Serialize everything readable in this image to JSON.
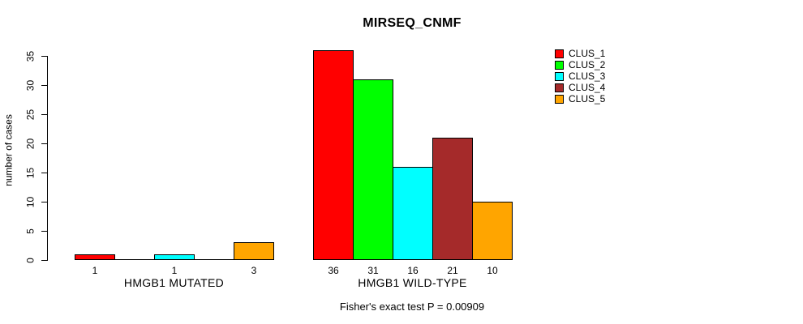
{
  "chart_data": {
    "type": "bar",
    "title": "MIRSEQ_CNMF",
    "ylabel": "number of cases",
    "xlabel": "",
    "annotation": "Fisher's exact test P = 0.00909",
    "yticks": [
      0,
      5,
      10,
      15,
      20,
      25,
      30,
      35
    ],
    "ylim": [
      0,
      36
    ],
    "grid": false,
    "legend_position": "top-right",
    "categories": [
      "HMGB1 MUTATED",
      "HMGB1 WILD-TYPE"
    ],
    "series": [
      {
        "name": "CLUS_1",
        "color": "#ff0000",
        "values": [
          1,
          36
        ]
      },
      {
        "name": "CLUS_2",
        "color": "#00ff00",
        "values": [
          0,
          31
        ]
      },
      {
        "name": "CLUS_3",
        "color": "#00ffff",
        "values": [
          1,
          16
        ]
      },
      {
        "name": "CLUS_4",
        "color": "#a52a2a",
        "values": [
          0,
          21
        ]
      },
      {
        "name": "CLUS_5",
        "color": "#ffa500",
        "values": [
          3,
          10
        ]
      }
    ],
    "visible_bar_labels": {
      "HMGB1 MUTATED": [
        "1",
        "1",
        "3"
      ],
      "HMGB1 WILD-TYPE": [
        "36",
        "31",
        "16",
        "21",
        "10"
      ]
    },
    "background_color": "#ffffff",
    "axis_color": "#000000"
  }
}
